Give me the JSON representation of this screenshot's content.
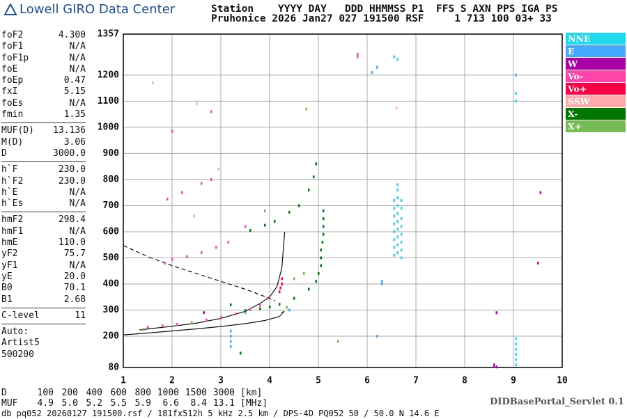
{
  "header": {
    "logo": "Lowell GIRO Data Center",
    "line1": "Station    YYYY DAY   DDD HHMMSS P1  FFS S AXN PPS IGA PS",
    "line2": "Pruhonice 2026 Jan27 027 191500 RSF     1 713 100 03+ 33"
  },
  "parameters": [
    [
      {
        "label": "foF2",
        "value": "4.300"
      },
      {
        "label": "foF1",
        "value": "N/A"
      },
      {
        "label": "foF1p",
        "value": "N/A"
      },
      {
        "label": "foE",
        "value": "N/A"
      },
      {
        "label": "foEp",
        "value": "0.47"
      },
      {
        "label": "fxI",
        "value": "5.15"
      },
      {
        "label": "foEs",
        "value": "N/A"
      },
      {
        "label": "fmin",
        "value": "1.35"
      }
    ],
    [
      {
        "label": "MUF(D)",
        "value": "13.136"
      },
      {
        "label": "M(D)",
        "value": "3.06"
      },
      {
        "label": "D",
        "value": "3000.0"
      }
    ],
    [
      {
        "label": "h`F",
        "value": "230.0"
      },
      {
        "label": "h`F2",
        "value": "230.0"
      },
      {
        "label": "h`E",
        "value": "N/A"
      },
      {
        "label": "h`Es",
        "value": "N/A"
      }
    ],
    [
      {
        "label": "hmF2",
        "value": "298.4"
      },
      {
        "label": "hmF1",
        "value": "N/A"
      },
      {
        "label": "hmE",
        "value": "110.0"
      },
      {
        "label": "yF2",
        "value": "75.7"
      },
      {
        "label": "yF1",
        "value": "N/A"
      },
      {
        "label": "yE",
        "value": "20.0"
      },
      {
        "label": "B0",
        "value": "70.1"
      },
      {
        "label": "B1",
        "value": "2.68"
      }
    ],
    [
      {
        "label": "C-level",
        "value": "11"
      }
    ]
  ],
  "auto": [
    "Auto:",
    "Artist5",
    "500200"
  ],
  "footer": {
    "rows": [
      {
        "label": "D",
        "values": [
          "100",
          "200",
          "400",
          "600",
          "800",
          "1000",
          "1500",
          "3000"
        ],
        "unit": "[km]"
      },
      {
        "label": "MUF",
        "values": [
          "4.9",
          "5.0",
          "5.2",
          "5.5",
          "5.9",
          "6.6",
          "8.4",
          "13.1"
        ],
        "unit": "[MHz]"
      }
    ],
    "caption": "db pq052 20260127 191500.rsf / 181fx512h 5 kHz 2.5 km / DPS-4D PQ052 50 / 50.0 N 14.6 E",
    "servlet": "DIDBasePortal_Servlet 0.1"
  },
  "chart_data": {
    "type": "scatter",
    "xlim": [
      1,
      10
    ],
    "xticks": [
      1,
      2,
      3,
      4,
      5,
      6,
      7,
      8,
      9,
      10
    ],
    "ylim": [
      80,
      1357
    ],
    "yticks": [
      80,
      200,
      300,
      400,
      500,
      600,
      700,
      800,
      900,
      1000,
      1100,
      1200,
      1357
    ],
    "grid": true,
    "series": [
      {
        "name": "NNE",
        "color": "#22d8ee",
        "x": [
          6.55,
          6.55,
          6.55,
          6.55,
          6.55,
          6.55,
          6.55,
          6.55,
          6.62,
          6.62,
          6.62,
          6.62,
          6.62,
          6.62,
          6.62,
          6.62,
          6.62,
          6.62,
          6.7,
          6.7,
          6.7,
          6.7,
          6.7,
          6.7,
          6.7,
          6.7,
          6.55,
          6.62,
          9.05,
          9.05,
          9.05,
          9.05,
          9.05,
          9.05,
          9.05,
          9.05
        ],
        "y": [
          510,
          540,
          570,
          600,
          630,
          660,
          690,
          720,
          520,
          550,
          580,
          610,
          640,
          670,
          700,
          730,
          760,
          780,
          500,
          530,
          560,
          590,
          620,
          650,
          690,
          720,
          1270,
          1260,
          1130,
          1100,
          90,
          110,
          130,
          150,
          170,
          190
        ]
      },
      {
        "name": "E",
        "color": "#44aaff",
        "x": [
          3.2,
          3.2,
          3.2,
          3.2,
          6.3,
          6.3,
          6.2,
          6.2,
          6.1,
          9.05,
          3.5,
          4.4
        ],
        "y": [
          160,
          180,
          200,
          220,
          400,
          410,
          200,
          1230,
          1210,
          1200,
          290,
          300
        ]
      },
      {
        "name": "W",
        "color": "#aa00aa",
        "x": [
          8.6,
          8.6,
          8.65,
          9.55,
          2.65,
          8.65
        ],
        "y": [
          90,
          84,
          82,
          750,
          290,
          290
        ]
      },
      {
        "name": "Vo-",
        "color": "#ff44aa",
        "x": [
          1.5,
          1.8,
          2.1,
          2.4,
          2.7,
          3.0,
          3.3,
          3.6,
          3.8,
          3.95,
          1.85,
          2.0,
          2.3,
          2.6,
          2.9,
          3.15,
          3.5,
          1.9,
          2.2,
          2.6,
          2.8,
          2.0,
          2.8,
          5.8,
          5.8
        ],
        "y": [
          235,
          240,
          245,
          252,
          262,
          272,
          285,
          302,
          318,
          345,
          480,
          495,
          505,
          520,
          540,
          560,
          620,
          725,
          750,
          785,
          800,
          985,
          1060,
          1270,
          1280
        ]
      },
      {
        "name": "Vo+",
        "color": "#ff0044",
        "x": [
          4.2,
          4.22,
          4.25,
          4.25,
          9.5
        ],
        "y": [
          370,
          385,
          400,
          420,
          480
        ]
      },
      {
        "name": "SSW",
        "color": "#ffaaaa",
        "x": [
          1.6,
          2.5,
          2.45,
          2.95,
          6.6
        ],
        "y": [
          1170,
          1090,
          660,
          840,
          1075
        ]
      },
      {
        "name": "X-",
        "color": "#007700",
        "x": [
          3.5,
          3.8,
          4.0,
          4.2,
          4.5,
          4.8,
          4.95,
          5.0,
          5.05,
          5.05,
          5.05,
          5.08,
          5.1,
          5.1,
          5.1,
          5.1,
          3.6,
          3.9,
          4.1,
          4.4,
          4.6,
          4.8,
          4.9,
          4.95,
          3.4,
          3.2
        ],
        "y": [
          298,
          305,
          312,
          322,
          345,
          380,
          410,
          440,
          470,
          500,
          530,
          560,
          590,
          620,
          650,
          680,
          605,
          625,
          640,
          675,
          700,
          760,
          810,
          860,
          135,
          320
        ]
      },
      {
        "name": "X+",
        "color": "#77bb55",
        "x": [
          2.4,
          4.5,
          4.7,
          1.4,
          3.9,
          4.35,
          4.75,
          5.4
        ],
        "y": [
          250,
          420,
          440,
          225,
          680,
          310,
          1070,
          180
        ]
      }
    ],
    "traces": [
      {
        "x": [
          1,
          1.5,
          2,
          2.5,
          3,
          3.5,
          3.9,
          4.2,
          4.3,
          4.25
        ],
        "y": [
          205,
          212,
          220,
          228,
          237,
          248,
          260,
          275,
          296,
          290
        ],
        "dash": false
      },
      {
        "x": [
          1.33,
          2,
          2.5,
          3,
          3.5,
          3.8,
          4.0,
          4.15,
          4.25,
          4.31
        ],
        "y": [
          224,
          238,
          250,
          268,
          295,
          325,
          350,
          390,
          460,
          600
        ],
        "dash": false
      },
      {
        "x": [
          1,
          1.5,
          2,
          2.5,
          3,
          3.5,
          3.9,
          4.11
        ],
        "y": [
          547,
          505,
          470,
          440,
          410,
          380,
          352,
          336
        ],
        "dash": true
      }
    ]
  }
}
